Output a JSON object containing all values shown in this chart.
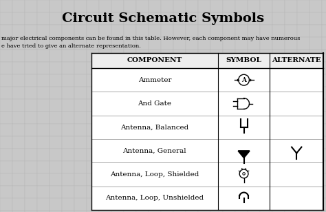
{
  "title": "Circuit Schematic Symbols",
  "subtitle_line1": "major electrical components can be found in this table. However, each component may have numerous",
  "subtitle_line2": "e have tried to give an alternate representation.",
  "bg_color": "#c8c8c8",
  "table_bg": "#ffffff",
  "col_headers": [
    "COMPONENT",
    "SYMBOL",
    "ALTERNATE"
  ],
  "rows": [
    [
      "Ammeter",
      "ammeter",
      ""
    ],
    [
      "And Gate",
      "and_gate",
      ""
    ],
    [
      "Antenna, Balanced",
      "antenna_balanced",
      ""
    ],
    [
      "Antenna, General",
      "antenna_general",
      "antenna_general_alt"
    ],
    [
      "Antenna, Loop, Shielded",
      "antenna_loop_shielded",
      ""
    ],
    [
      "Antenna, Loop, Unshielded",
      "antenna_loop_unshielded",
      ""
    ]
  ],
  "title_fontsize": 14,
  "text_fontsize": 7.5,
  "header_fontsize": 7.5,
  "subtitle_fontsize": 6.0
}
